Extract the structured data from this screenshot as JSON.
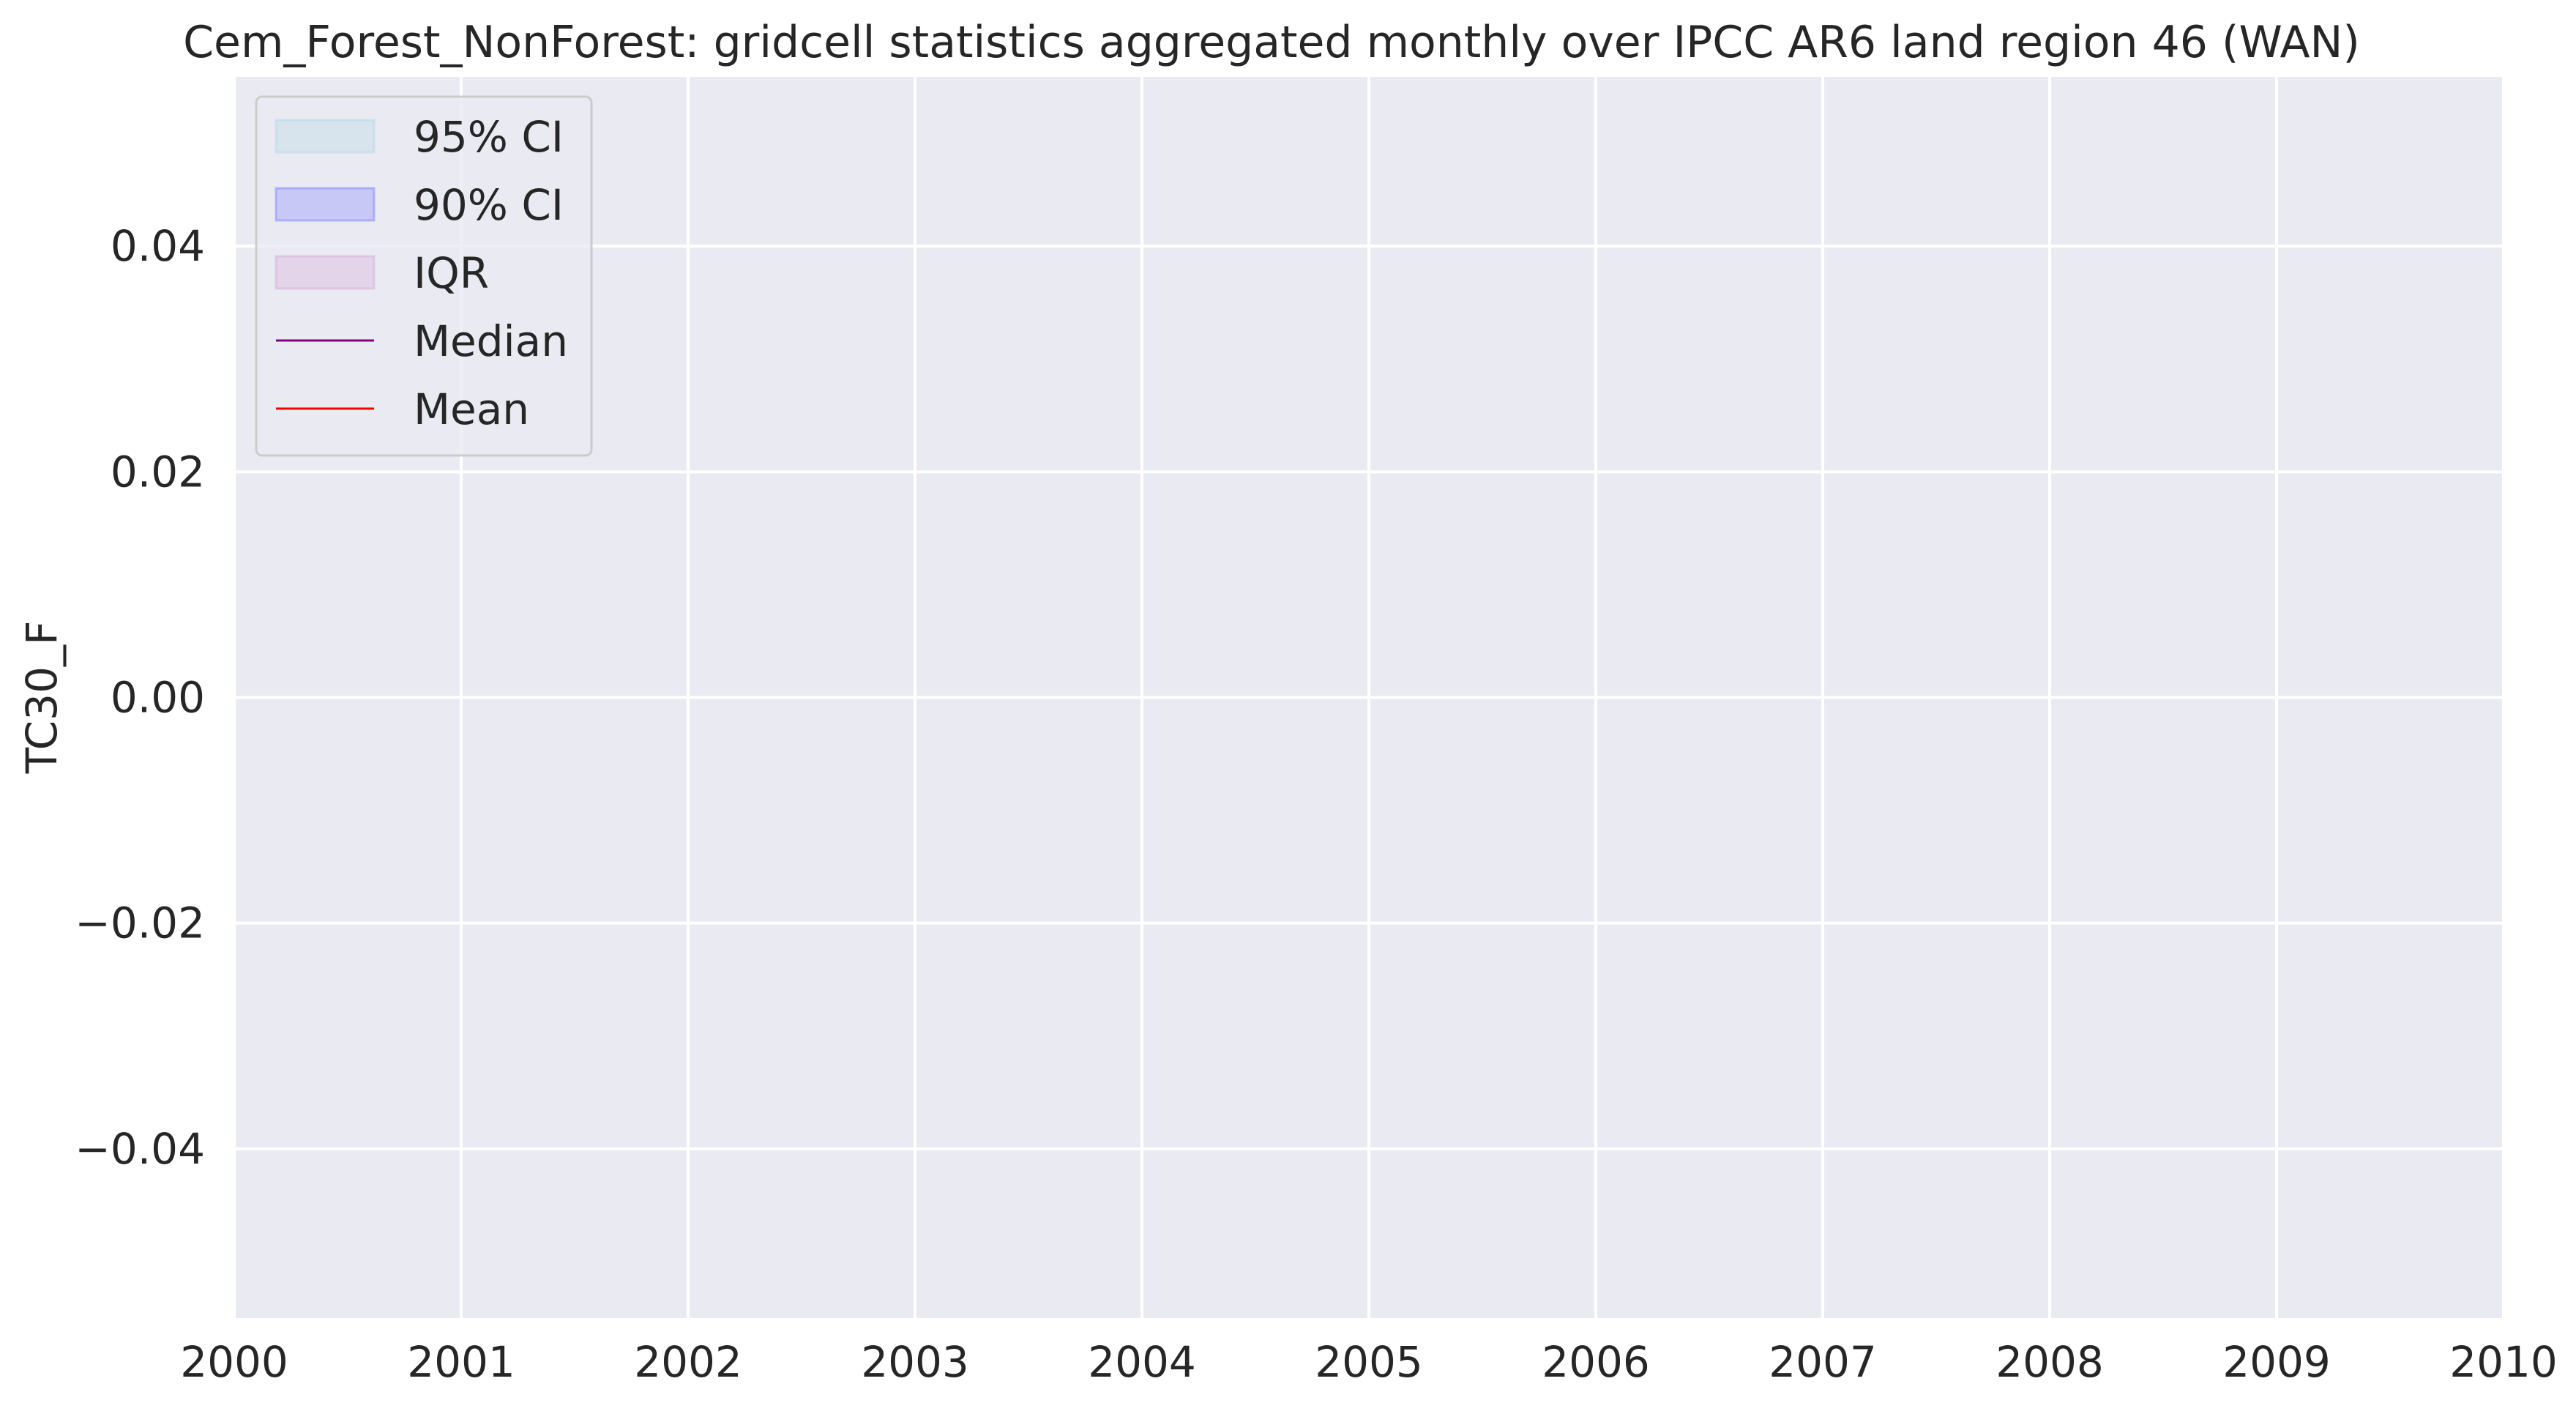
{
  "chart_data": {
    "type": "area",
    "title": "Cem_Forest_NonForest: gridcell statistics aggregated monthly over IPCC AR6 land region 46 (WAN)",
    "xlabel": "",
    "ylabel": "TC30_F",
    "xlim": [
      2000,
      2010
    ],
    "ylim": [
      -0.055,
      0.055
    ],
    "x_ticks": [
      2000,
      2001,
      2002,
      2003,
      2004,
      2005,
      2006,
      2007,
      2008,
      2009,
      2010
    ],
    "y_ticks": [
      0.04,
      0.02,
      0.0,
      -0.02,
      -0.04
    ],
    "x_tick_labels": [
      "2000",
      "2001",
      "2002",
      "2003",
      "2004",
      "2005",
      "2006",
      "2007",
      "2008",
      "2009",
      "2010"
    ],
    "y_tick_labels": [
      "0.04",
      "0.02",
      "0.00",
      "−0.02",
      "−0.04"
    ],
    "grid": true,
    "legend_position": "top-left",
    "series": [
      {
        "name": "95% CI",
        "kind": "band",
        "color": "#add8e6",
        "values": []
      },
      {
        "name": "90% CI",
        "kind": "band",
        "color": "#7b7bff",
        "values": []
      },
      {
        "name": "IQR",
        "kind": "band",
        "color": "#d8a3d8",
        "values": []
      },
      {
        "name": "Median",
        "kind": "line",
        "color": "#800080",
        "values": []
      },
      {
        "name": "Mean",
        "kind": "line",
        "color": "#ff0000",
        "values": []
      }
    ]
  },
  "colors": {
    "plot_background": "#eaeaf2",
    "grid": "#ffffff",
    "legend_frame": "#cccccc",
    "text": "#262626"
  }
}
